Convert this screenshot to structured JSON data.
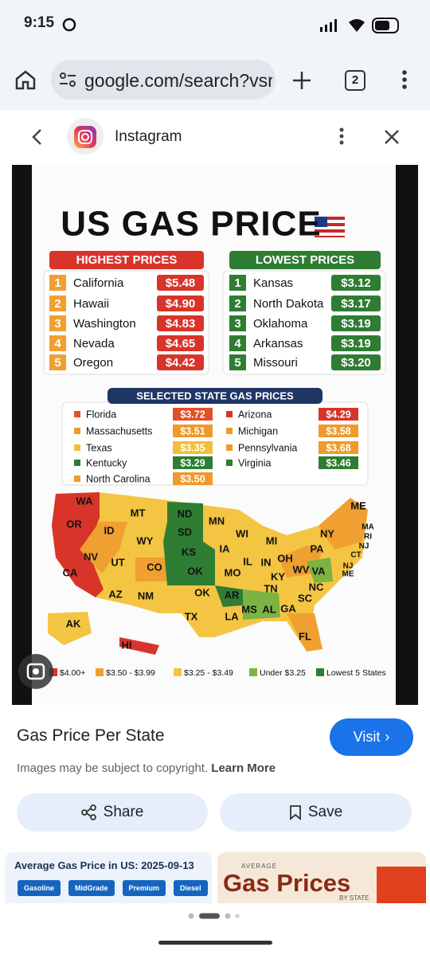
{
  "status_bar": {
    "time": "9:15"
  },
  "browser": {
    "url": "google.com/search?vsri",
    "tab_count": "2"
  },
  "viewer": {
    "source": "Instagram"
  },
  "image": {
    "title": "US GAS PRICE",
    "highest": {
      "heading": "HIGHEST PRICES",
      "items": [
        {
          "rank": "1",
          "state": "California",
          "price": "$5.48"
        },
        {
          "rank": "2",
          "state": "Hawaii",
          "price": "$4.90"
        },
        {
          "rank": "3",
          "state": "Washington",
          "price": "$4.83"
        },
        {
          "rank": "4",
          "state": "Nevada",
          "price": "$4.65"
        },
        {
          "rank": "5",
          "state": "Oregon",
          "price": "$4.42"
        }
      ]
    },
    "lowest": {
      "heading": "LOWEST PRICES",
      "items": [
        {
          "rank": "1",
          "state": "Kansas",
          "price": "$3.12"
        },
        {
          "rank": "2",
          "state": "North Dakota",
          "price": "$3.17"
        },
        {
          "rank": "3",
          "state": "Oklahoma",
          "price": "$3.19"
        },
        {
          "rank": "4",
          "state": "Arkansas",
          "price": "$3.19"
        },
        {
          "rank": "5",
          "state": "Missouri",
          "price": "$3.20"
        }
      ]
    },
    "selected": {
      "heading": "SELECTED STATE GAS PRICES",
      "items": [
        {
          "state": "Florida",
          "price": "$3.72",
          "color": "#e0502a"
        },
        {
          "state": "Massachusetts",
          "price": "$3.51",
          "color": "#ef9a2a"
        },
        {
          "state": "Texas",
          "price": "$3.35",
          "color": "#f2be3a"
        },
        {
          "state": "Kentucky",
          "price": "$3.29",
          "color": "#2e7d32"
        },
        {
          "state": "North Carolina",
          "price": "$3.50",
          "color": "#ef9a2a"
        },
        {
          "state": "Arizona",
          "price": "$4.29",
          "color": "#d8342a"
        },
        {
          "state": "Michigan",
          "price": "$3.58",
          "color": "#ef9a2a"
        },
        {
          "state": "Pennsylvania",
          "price": "$3.68",
          "color": "#ef9a2a"
        },
        {
          "state": "Virginia",
          "price": "$3.46",
          "color": "#2e7d32"
        }
      ]
    },
    "map_labels": [
      "WA",
      "OR",
      "CA",
      "NV",
      "ID",
      "MT",
      "WY",
      "UT",
      "CO",
      "AZ",
      "NM",
      "ND",
      "SD",
      "KS",
      "OK",
      "OK",
      "TX",
      "MN",
      "IA",
      "MO",
      "AR",
      "LA",
      "WI",
      "IL",
      "MI",
      "IN",
      "OH",
      "KY",
      "TN",
      "MS",
      "AL",
      "GA",
      "FL",
      "SC",
      "NC",
      "VA",
      "WV",
      "PA",
      "NY",
      "ME",
      "MA",
      "RI",
      "NJ",
      "CT",
      "NJ",
      "ME",
      "AK",
      "HI"
    ],
    "legend": [
      {
        "label": "$4.00+",
        "color": "#d8342a"
      },
      {
        "label": "$3.50 - $3.99",
        "color": "#f0a030"
      },
      {
        "label": "$3.25 - $3.49",
        "color": "#f4c542"
      },
      {
        "label": "Under $3.25",
        "color": "#7cb342"
      },
      {
        "label": "Lowest 5 States",
        "color": "#2e7d32"
      }
    ]
  },
  "result": {
    "title": "Gas Price Per State",
    "visit": "Visit",
    "notice": "Images may be subject to copyright.",
    "learn_more": "Learn More",
    "share": "Share",
    "save": "Save"
  },
  "related": [
    {
      "title": "Average Gas Price in US: 2025-09-13",
      "buttons": [
        "Gasoline",
        "MidGrade",
        "Premium",
        "Diesel"
      ]
    },
    {
      "kicker": "AVERAGE",
      "title": "Gas Prices",
      "subtitle": "BY STATE"
    }
  ]
}
